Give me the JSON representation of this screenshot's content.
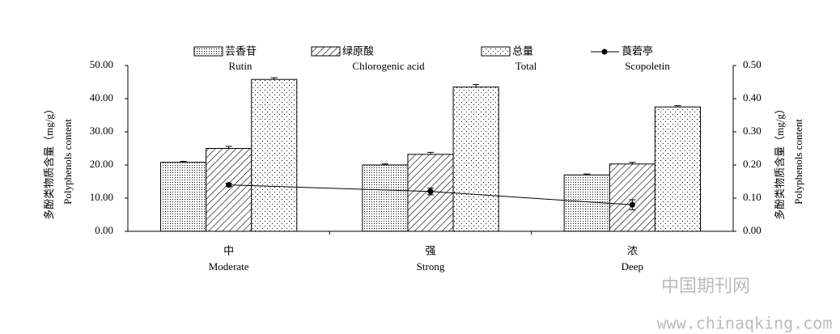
{
  "chart_data": {
    "type": "bar",
    "categories": [
      "中",
      "强",
      "浓"
    ],
    "categories_en": [
      "Moderate",
      "Strong",
      "Deep"
    ],
    "series": [
      {
        "name": "芸香苷",
        "name_en": "Rutin",
        "pattern": "dense-dots",
        "values": [
          20.8,
          20.0,
          17.0
        ],
        "errors": [
          0.3,
          0.3,
          0.3
        ]
      },
      {
        "name": "绿原酸",
        "name_en": "Chlorogenic acid",
        "pattern": "hatch",
        "values": [
          25.0,
          23.2,
          20.3
        ],
        "errors": [
          0.6,
          0.6,
          0.5
        ]
      },
      {
        "name": "总量",
        "name_en": "Total",
        "pattern": "sparse-dots",
        "values": [
          45.8,
          43.5,
          37.5
        ],
        "errors": [
          0.5,
          0.8,
          0.4
        ]
      },
      {
        "name": "莨菪亭",
        "name_en": "Scopoletin",
        "type": "line",
        "axis": "y2",
        "color": "#000000",
        "values": [
          0.14,
          0.12,
          0.08
        ],
        "errors": [
          0.005,
          0.01,
          0.015
        ]
      }
    ],
    "ylabel": "多酚类物质含量（mg/g）",
    "ylabel_en": "Polyphenols content",
    "y2label": "多酚类物质含量（mg/g）",
    "y2label_en": "Polyphenols content",
    "ylim": [
      0,
      50
    ],
    "yticks": [
      {
        "value": 0,
        "label": "0.00"
      },
      {
        "value": 10,
        "label": "10.00"
      },
      {
        "value": 20,
        "label": "20.00"
      },
      {
        "value": 30,
        "label": "30.00"
      },
      {
        "value": 40,
        "label": "40.00"
      },
      {
        "value": 50,
        "label": "50.00"
      }
    ],
    "y2lim": [
      0,
      0.5
    ],
    "y2ticks": [
      {
        "value": 0,
        "label": "0.00"
      },
      {
        "value": 0.1,
        "label": "0.10"
      },
      {
        "value": 0.2,
        "label": "0.20"
      },
      {
        "value": 0.3,
        "label": "0.30"
      },
      {
        "value": 0.4,
        "label": "0.40"
      },
      {
        "value": 0.5,
        "label": "0.50"
      }
    ],
    "watermark": "中国期刊网",
    "watermark_url": "www.chinaqking.com"
  }
}
